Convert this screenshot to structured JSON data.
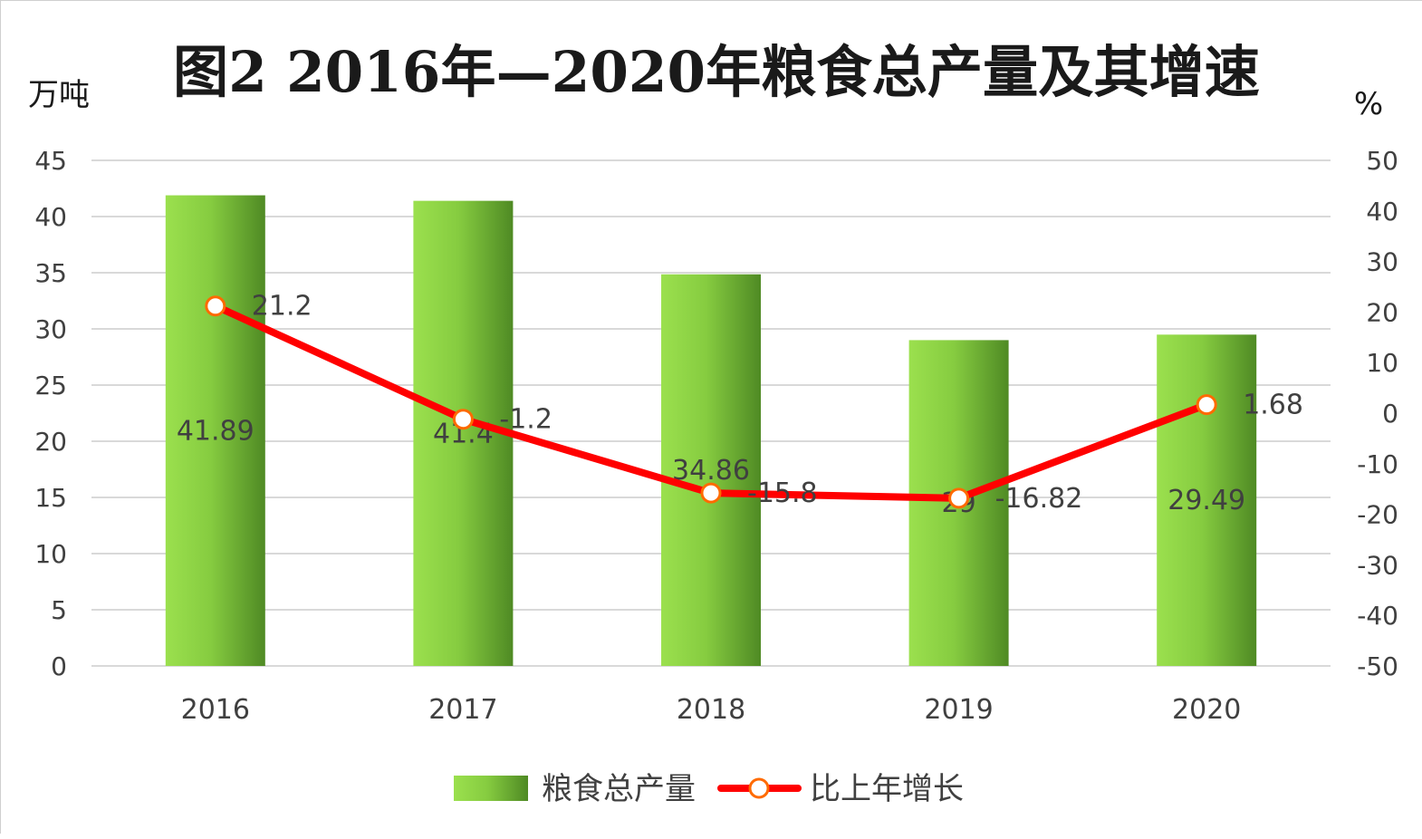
{
  "chart_data": {
    "type": "bar",
    "title": "图2  2016年—2020年粮食总产量及其增速",
    "y_left_unit": "万吨",
    "y_right_unit": "%",
    "categories": [
      "2016",
      "2017",
      "2018",
      "2019",
      "2020"
    ],
    "series": [
      {
        "name": "粮食总产量",
        "type": "bar",
        "axis": "left",
        "values": [
          41.89,
          41.4,
          34.86,
          29,
          29.49
        ],
        "labels": [
          "41.89",
          "41.4",
          "34.86",
          "29",
          "29.49"
        ],
        "color": "#7cc23c"
      },
      {
        "name": "比上年增长",
        "type": "line",
        "axis": "right",
        "values": [
          21.2,
          -1.2,
          -15.8,
          -16.82,
          1.68
        ],
        "labels": [
          "21.2",
          "-1.2",
          "-15.8",
          "-16.82",
          "1.68"
        ],
        "color": "#ff0000"
      }
    ],
    "y_left": {
      "range": [
        0,
        45
      ],
      "ticks": [
        "0",
        "5",
        "10",
        "15",
        "20",
        "25",
        "30",
        "35",
        "40",
        "45"
      ]
    },
    "y_right": {
      "range": [
        -50,
        50
      ],
      "ticks": [
        "-50",
        "-40",
        "-30",
        "-20",
        "-10",
        "0",
        "10",
        "20",
        "30",
        "40",
        "50"
      ]
    },
    "grid": true,
    "legend_position": "bottom"
  }
}
